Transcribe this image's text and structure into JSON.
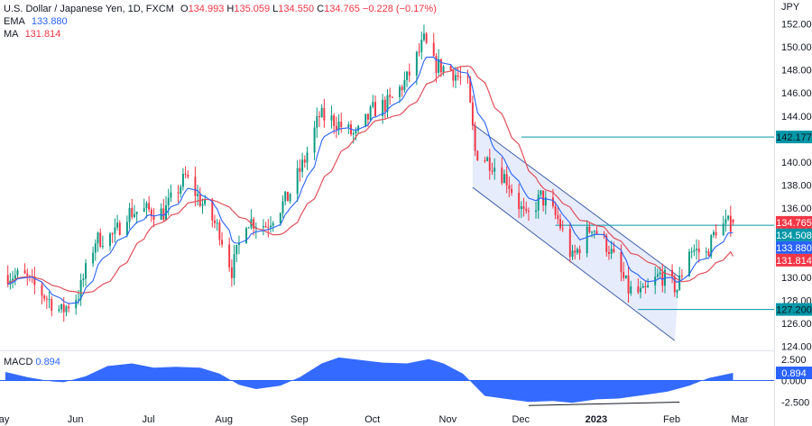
{
  "header": {
    "symbol": "U.S. Dollar / Japanese Yen, 1D, FXCM",
    "open_label": "O",
    "open": "134.993",
    "high_label": "H",
    "high": "135.059",
    "low_label": "L",
    "low": "134.550",
    "close_label": "C",
    "close": "134.765",
    "change": "−0.228 (−0.17%)",
    "ema_label": "EMA",
    "ema_value": "133.880",
    "ma_label": "MA",
    "ma_value": "131.814"
  },
  "axis": {
    "currency": "JPY"
  },
  "colors": {
    "up": "#089981",
    "down": "#f23645",
    "ema": "#2962ff",
    "ma": "#e0505a",
    "level": "#0097a7",
    "channel_fill": "#dde6fa",
    "channel_line": "#3f5fa8",
    "macd_fill": "#2962ff",
    "badge_close": "#f23645",
    "badge_level": "#0097a7",
    "badge_ema": "#2962ff",
    "badge_ma": "#f23645"
  },
  "chart_data": [
    {
      "type": "candlestick",
      "title": "U.S. Dollar / Japanese Yen, 1D, FXCM",
      "y_ticks": [
        "152.000",
        "150.000",
        "148.000",
        "146.000",
        "144.000",
        "142.000",
        "140.000",
        "138.000",
        "136.000",
        "134.000",
        "132.000",
        "130.000",
        "128.000",
        "126.000",
        "124.000"
      ],
      "ylim": [
        124,
        152
      ],
      "x_ticks": [
        "May",
        "Jun",
        "Jul",
        "Aug",
        "Sep",
        "Oct",
        "Nov",
        "Dec",
        "2023",
        "Feb",
        "Mar"
      ],
      "x_tick_dates": [
        "2022-05-01",
        "2022-06-01",
        "2022-07-01",
        "2022-08-01",
        "2022-09-01",
        "2022-10-01",
        "2022-11-01",
        "2022-12-01",
        "2023-01-01",
        "2023-02-01",
        "2023-03-01"
      ],
      "xlim": [
        "2022-05-01",
        "2023-03-01"
      ],
      "price_path": [
        [
          "2022-05-02",
          130.2
        ],
        [
          "2022-05-09",
          130.0
        ],
        [
          "2022-05-16",
          128.6
        ],
        [
          "2022-05-24",
          127.0
        ],
        [
          "2022-05-31",
          128.5
        ],
        [
          "2022-06-07",
          133.2
        ],
        [
          "2022-06-15",
          133.7
        ],
        [
          "2022-06-20",
          135.6
        ],
        [
          "2022-06-28",
          135.8
        ],
        [
          "2022-07-05",
          135.6
        ],
        [
          "2022-07-14",
          138.7
        ],
        [
          "2022-07-22",
          136.0
        ],
        [
          "2022-07-28",
          134.0
        ],
        [
          "2022-08-02",
          130.6
        ],
        [
          "2022-08-08",
          135.0
        ],
        [
          "2022-08-16",
          134.5
        ],
        [
          "2022-08-25",
          136.9
        ],
        [
          "2022-09-01",
          140.2
        ],
        [
          "2022-09-07",
          144.0
        ],
        [
          "2022-09-13",
          143.6
        ],
        [
          "2022-09-22",
          142.2
        ],
        [
          "2022-09-29",
          144.5
        ],
        [
          "2022-10-06",
          145.2
        ],
        [
          "2022-10-13",
          147.2
        ],
        [
          "2022-10-20",
          150.5
        ],
        [
          "2022-10-24",
          148.5
        ],
        [
          "2022-10-31",
          148.0
        ],
        [
          "2022-11-07",
          146.6
        ],
        [
          "2022-11-10",
          140.9
        ],
        [
          "2022-11-17",
          139.9
        ],
        [
          "2022-11-23",
          138.5
        ],
        [
          "2022-12-01",
          135.0
        ],
        [
          "2022-12-07",
          137.0
        ],
        [
          "2022-12-14",
          135.0
        ],
        [
          "2022-12-20",
          131.6
        ],
        [
          "2022-12-28",
          134.5
        ],
        [
          "2023-01-04",
          132.5
        ],
        [
          "2023-01-12",
          128.9
        ],
        [
          "2023-01-18",
          128.5
        ],
        [
          "2023-01-25",
          130.2
        ],
        [
          "2023-02-01",
          129.0
        ],
        [
          "2023-02-06",
          132.5
        ],
        [
          "2023-02-13",
          132.0
        ],
        [
          "2023-02-17",
          134.2
        ],
        [
          "2023-02-24",
          134.765
        ]
      ],
      "ema_value": 133.88,
      "ma_value": 131.814,
      "levels": [
        {
          "label": "142.177",
          "value": 142.177,
          "from": "2022-11-29"
        },
        {
          "label": "134.508",
          "value": 134.508,
          "from": "2022-12-13"
        },
        {
          "label": "127.200",
          "value": 127.2,
          "from": "2023-01-16"
        }
      ],
      "price_badges": [
        {
          "label": "134.765",
          "value": 134.765,
          "kind": "close"
        },
        {
          "label": "134.508",
          "value": 134.508,
          "kind": "level"
        },
        {
          "label": "133.880",
          "value": 133.88,
          "kind": "ema"
        },
        {
          "label": "131.814",
          "value": 131.814,
          "kind": "ma"
        }
      ],
      "channel": {
        "upper": [
          [
            "2022-11-09",
            143.3
          ],
          [
            "2023-02-02",
            130.0
          ]
        ],
        "lower": [
          [
            "2022-11-09",
            137.8
          ],
          [
            "2023-01-31",
            124.5
          ]
        ]
      }
    },
    {
      "type": "area",
      "title": "MACD",
      "legend_value": "0.894",
      "y_ticks": [
        "2.500",
        "0.000",
        "-2.500"
      ],
      "ylim": [
        -3.1,
        3.0
      ],
      "badge": "0.894",
      "path": [
        [
          "2022-05-01",
          1.0
        ],
        [
          "2022-05-10",
          0.4
        ],
        [
          "2022-05-20",
          -0.1
        ],
        [
          "2022-05-25",
          -0.2
        ],
        [
          "2022-06-03",
          0.5
        ],
        [
          "2022-06-12",
          1.7
        ],
        [
          "2022-06-22",
          2.0
        ],
        [
          "2022-07-01",
          1.5
        ],
        [
          "2022-07-10",
          1.6
        ],
        [
          "2022-07-20",
          1.5
        ],
        [
          "2022-07-28",
          0.8
        ],
        [
          "2022-08-05",
          -0.5
        ],
        [
          "2022-08-12",
          -1.0
        ],
        [
          "2022-08-22",
          -0.6
        ],
        [
          "2022-08-30",
          0.4
        ],
        [
          "2022-09-08",
          2.0
        ],
        [
          "2022-09-15",
          2.7
        ],
        [
          "2022-09-24",
          2.4
        ],
        [
          "2022-10-03",
          2.1
        ],
        [
          "2022-10-13",
          2.0
        ],
        [
          "2022-10-22",
          2.5
        ],
        [
          "2022-10-28",
          2.0
        ],
        [
          "2022-11-05",
          0.8
        ],
        [
          "2022-11-14",
          -1.8
        ],
        [
          "2022-11-24",
          -2.2
        ],
        [
          "2022-12-02",
          -2.5
        ],
        [
          "2022-12-12",
          -2.4
        ],
        [
          "2022-12-20",
          -2.6
        ],
        [
          "2022-12-30",
          -2.2
        ],
        [
          "2023-01-08",
          -2.1
        ],
        [
          "2023-01-18",
          -1.7
        ],
        [
          "2023-01-28",
          -1.3
        ],
        [
          "2023-02-06",
          -0.6
        ],
        [
          "2023-02-14",
          0.3
        ],
        [
          "2023-02-24",
          0.894
        ]
      ],
      "divergence_line": [
        [
          "2022-12-02",
          -2.6
        ],
        [
          "2023-02-02",
          -2.2
        ]
      ]
    }
  ]
}
